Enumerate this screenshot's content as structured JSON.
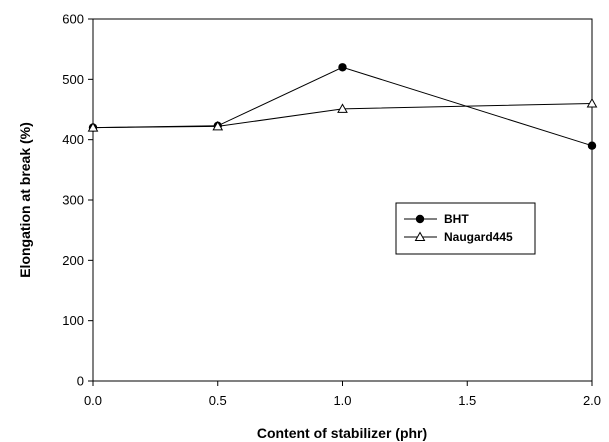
{
  "chart_data": {
    "type": "line",
    "xlabel": "Content of stabilizer (phr)",
    "ylabel": "Elongation at break (%)",
    "xlim": [
      0,
      2
    ],
    "ylim": [
      0,
      600
    ],
    "x_ticks": [
      0,
      0.5,
      1,
      1.5,
      2
    ],
    "x_tick_labels": [
      "0.0",
      "0.5",
      "1.0",
      "1.5",
      "2.0"
    ],
    "y_ticks": [
      0,
      100,
      200,
      300,
      400,
      500,
      600
    ],
    "y_tick_labels": [
      "0",
      "100",
      "200",
      "300",
      "400",
      "500",
      "600"
    ],
    "grid": false,
    "legend_position": "right",
    "series": [
      {
        "name": "BHT",
        "marker": "filled-circle",
        "color": "#000000",
        "x": [
          0,
          0.5,
          1,
          2
        ],
        "y": [
          420,
          423,
          520,
          390
        ]
      },
      {
        "name": "Naugard445",
        "marker": "open-triangle",
        "color": "#000000",
        "x": [
          0,
          0.5,
          1,
          2
        ],
        "y": [
          420,
          422,
          451,
          460
        ]
      }
    ]
  }
}
